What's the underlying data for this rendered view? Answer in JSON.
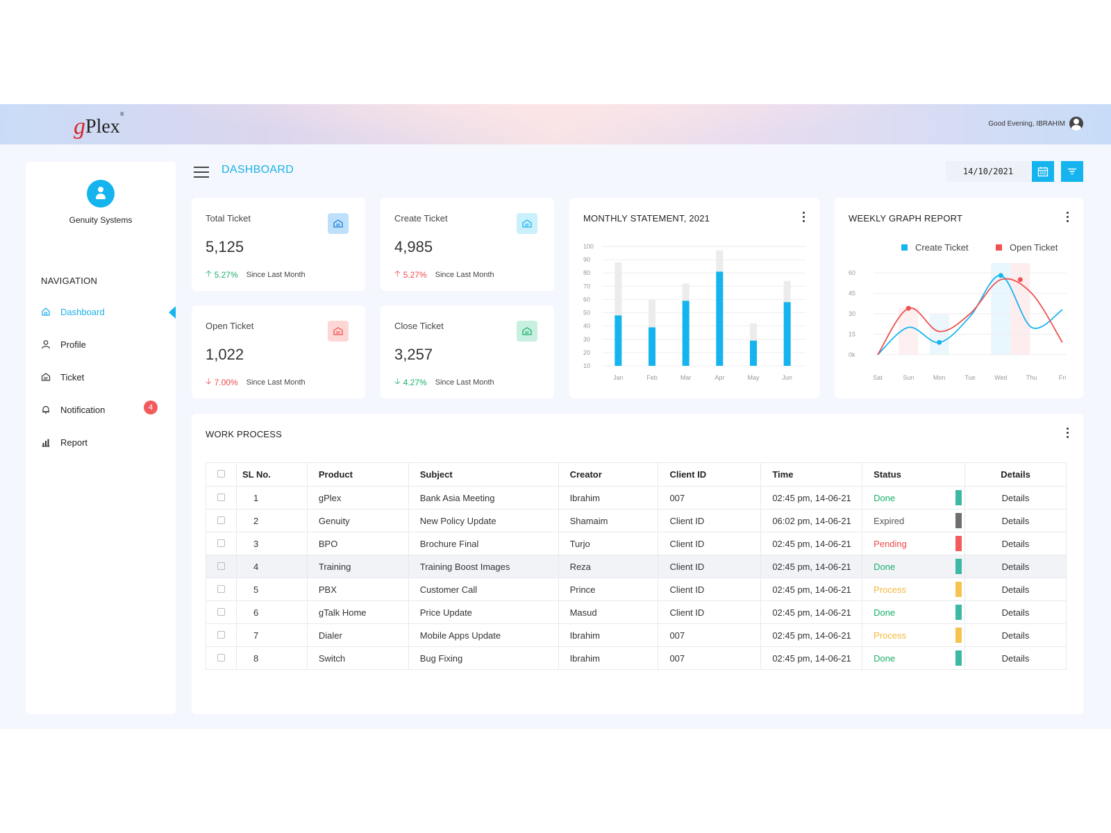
{
  "header": {
    "logo": "gPlex",
    "logo_g": "g",
    "logo_rest": "Plex",
    "logo_mark": "®",
    "greeting": "Good Evening, IBRAHIM"
  },
  "sidebar": {
    "company": "Genuity Systems",
    "nav_title": "NAVIGATION",
    "items": [
      {
        "label": "Dashboard",
        "icon": "home-icon",
        "active": true
      },
      {
        "label": "Profile",
        "icon": "user-icon"
      },
      {
        "label": "Ticket",
        "icon": "ticket-icon"
      },
      {
        "label": "Notification",
        "icon": "bell-icon",
        "badge": "4"
      },
      {
        "label": "Report",
        "icon": "bar-chart-icon"
      }
    ]
  },
  "toolbar": {
    "page_title": "DASHBOARD",
    "date": "14/10/2021"
  },
  "stats": [
    {
      "label": "Total Ticket",
      "value": "5,125",
      "change": "5.27%",
      "direction": "up",
      "since": "Since Last Month",
      "icon_color": "#bfe0fb"
    },
    {
      "label": "Create Ticket",
      "value": "4,985",
      "change": "5.27%",
      "direction": "up-red",
      "since": "Since Last Month",
      "icon_color": "#c9f0fb"
    },
    {
      "label": "Open Ticket",
      "value": "1,022",
      "change": "7.00%",
      "direction": "down-red",
      "since": "Since Last Month",
      "icon_color": "#fdd6d6"
    },
    {
      "label": "Close Ticket",
      "value": "3,257",
      "change": "4.27%",
      "direction": "down-green",
      "since": "Since Last Month",
      "icon_color": "#c8efe0"
    }
  ],
  "chart_data": [
    {
      "type": "bar",
      "title": "MONTHLY STATEMENT, 2021",
      "categories": [
        "Jan",
        "Feb",
        "Mar",
        "Apr",
        "May",
        "Jun"
      ],
      "y_ticks": [
        "100",
        "90",
        "80",
        "70",
        "60",
        "50",
        "40",
        "30",
        "20",
        "10"
      ],
      "ylim": [
        10,
        100
      ],
      "series": [
        {
          "values": [
            88,
            60,
            72,
            97,
            42,
            74
          ]
        },
        {
          "values": [
            48,
            39,
            59,
            81,
            29,
            58
          ]
        }
      ],
      "colors": [
        "#ececec",
        "#15b4ee"
      ]
    },
    {
      "type": "line",
      "title": "WEEKLY GRAPH REPORT",
      "categories": [
        "Sat",
        "Sun",
        "Mon",
        "Tue",
        "Wed",
        "Thu",
        "Fri"
      ],
      "y_ticks": [
        "60",
        "45",
        "30",
        "15",
        "0k"
      ],
      "ylim": [
        0,
        60
      ],
      "series": [
        {
          "name": "Create Ticket",
          "color": "#15b4ee",
          "values": [
            0,
            20,
            9,
            28,
            58,
            20,
            33
          ]
        },
        {
          "name": "Open Ticket",
          "color": "#f05050",
          "values": [
            0,
            34,
            17,
            30,
            55,
            45,
            9
          ]
        }
      ]
    }
  ],
  "work_process": {
    "title": "WORK PROCESS",
    "columns": [
      "SL No.",
      "Product",
      "Subject",
      "Creator",
      "Client ID",
      "Time",
      "Status",
      "Details"
    ],
    "rows": [
      {
        "sl": "1",
        "product": "gPlex",
        "subject": "Bank Asia Meeting",
        "creator": "Ibrahim",
        "client": "007",
        "time": "02:45 pm, 14-06-21",
        "status": "Done",
        "status_color": "#19b06b",
        "bar_color": "#3cb8a5",
        "details": "Details"
      },
      {
        "sl": "2",
        "product": "Genuity",
        "subject": "New Policy Update",
        "creator": "Shamaim",
        "client": "Client ID",
        "time": "06:02 pm, 14-06-21",
        "status": "Expired",
        "status_color": "#555555",
        "bar_color": "#6e6e6e",
        "details": "Details"
      },
      {
        "sl": "3",
        "product": "BPO",
        "subject": "Brochure Final",
        "creator": "Turjo",
        "client": "Client ID",
        "time": "02:45 pm, 14-06-21",
        "status": "Pending",
        "status_color": "#f04848",
        "bar_color": "#f25b5b",
        "details": "Details"
      },
      {
        "sl": "4",
        "product": "Training",
        "subject": "Training Boost Images",
        "creator": "Reza",
        "client": "Client ID",
        "time": "02:45 pm, 14-06-21",
        "status": "Done",
        "status_color": "#19b06b",
        "bar_color": "#3cb8a5",
        "details": "Details",
        "highlight": true
      },
      {
        "sl": "5",
        "product": "PBX",
        "subject": "Customer Call",
        "creator": "Prince",
        "client": "Client ID",
        "time": "02:45 pm, 14-06-21",
        "status": "Process",
        "status_color": "#f6b73c",
        "bar_color": "#f6c250",
        "details": "Details"
      },
      {
        "sl": "6",
        "product": "gTalk Home",
        "subject": "Price Update",
        "creator": "Masud",
        "client": "Client ID",
        "time": "02:45 pm, 14-06-21",
        "status": "Done",
        "status_color": "#19b06b",
        "bar_color": "#3cb8a5",
        "details": "Details"
      },
      {
        "sl": "7",
        "product": "Dialer",
        "subject": "Mobile Apps Update",
        "creator": "Ibrahim",
        "client": "007",
        "time": "02:45 pm, 14-06-21",
        "status": "Process",
        "status_color": "#f6b73c",
        "bar_color": "#f6c250",
        "details": "Details"
      },
      {
        "sl": "8",
        "product": "Switch",
        "subject": "Bug Fixing",
        "creator": "Ibrahim",
        "client": "007",
        "time": "02:45 pm, 14-06-21",
        "status": "Done",
        "status_color": "#19b06b",
        "bar_color": "#3cb8a5",
        "details": "Details"
      }
    ]
  }
}
